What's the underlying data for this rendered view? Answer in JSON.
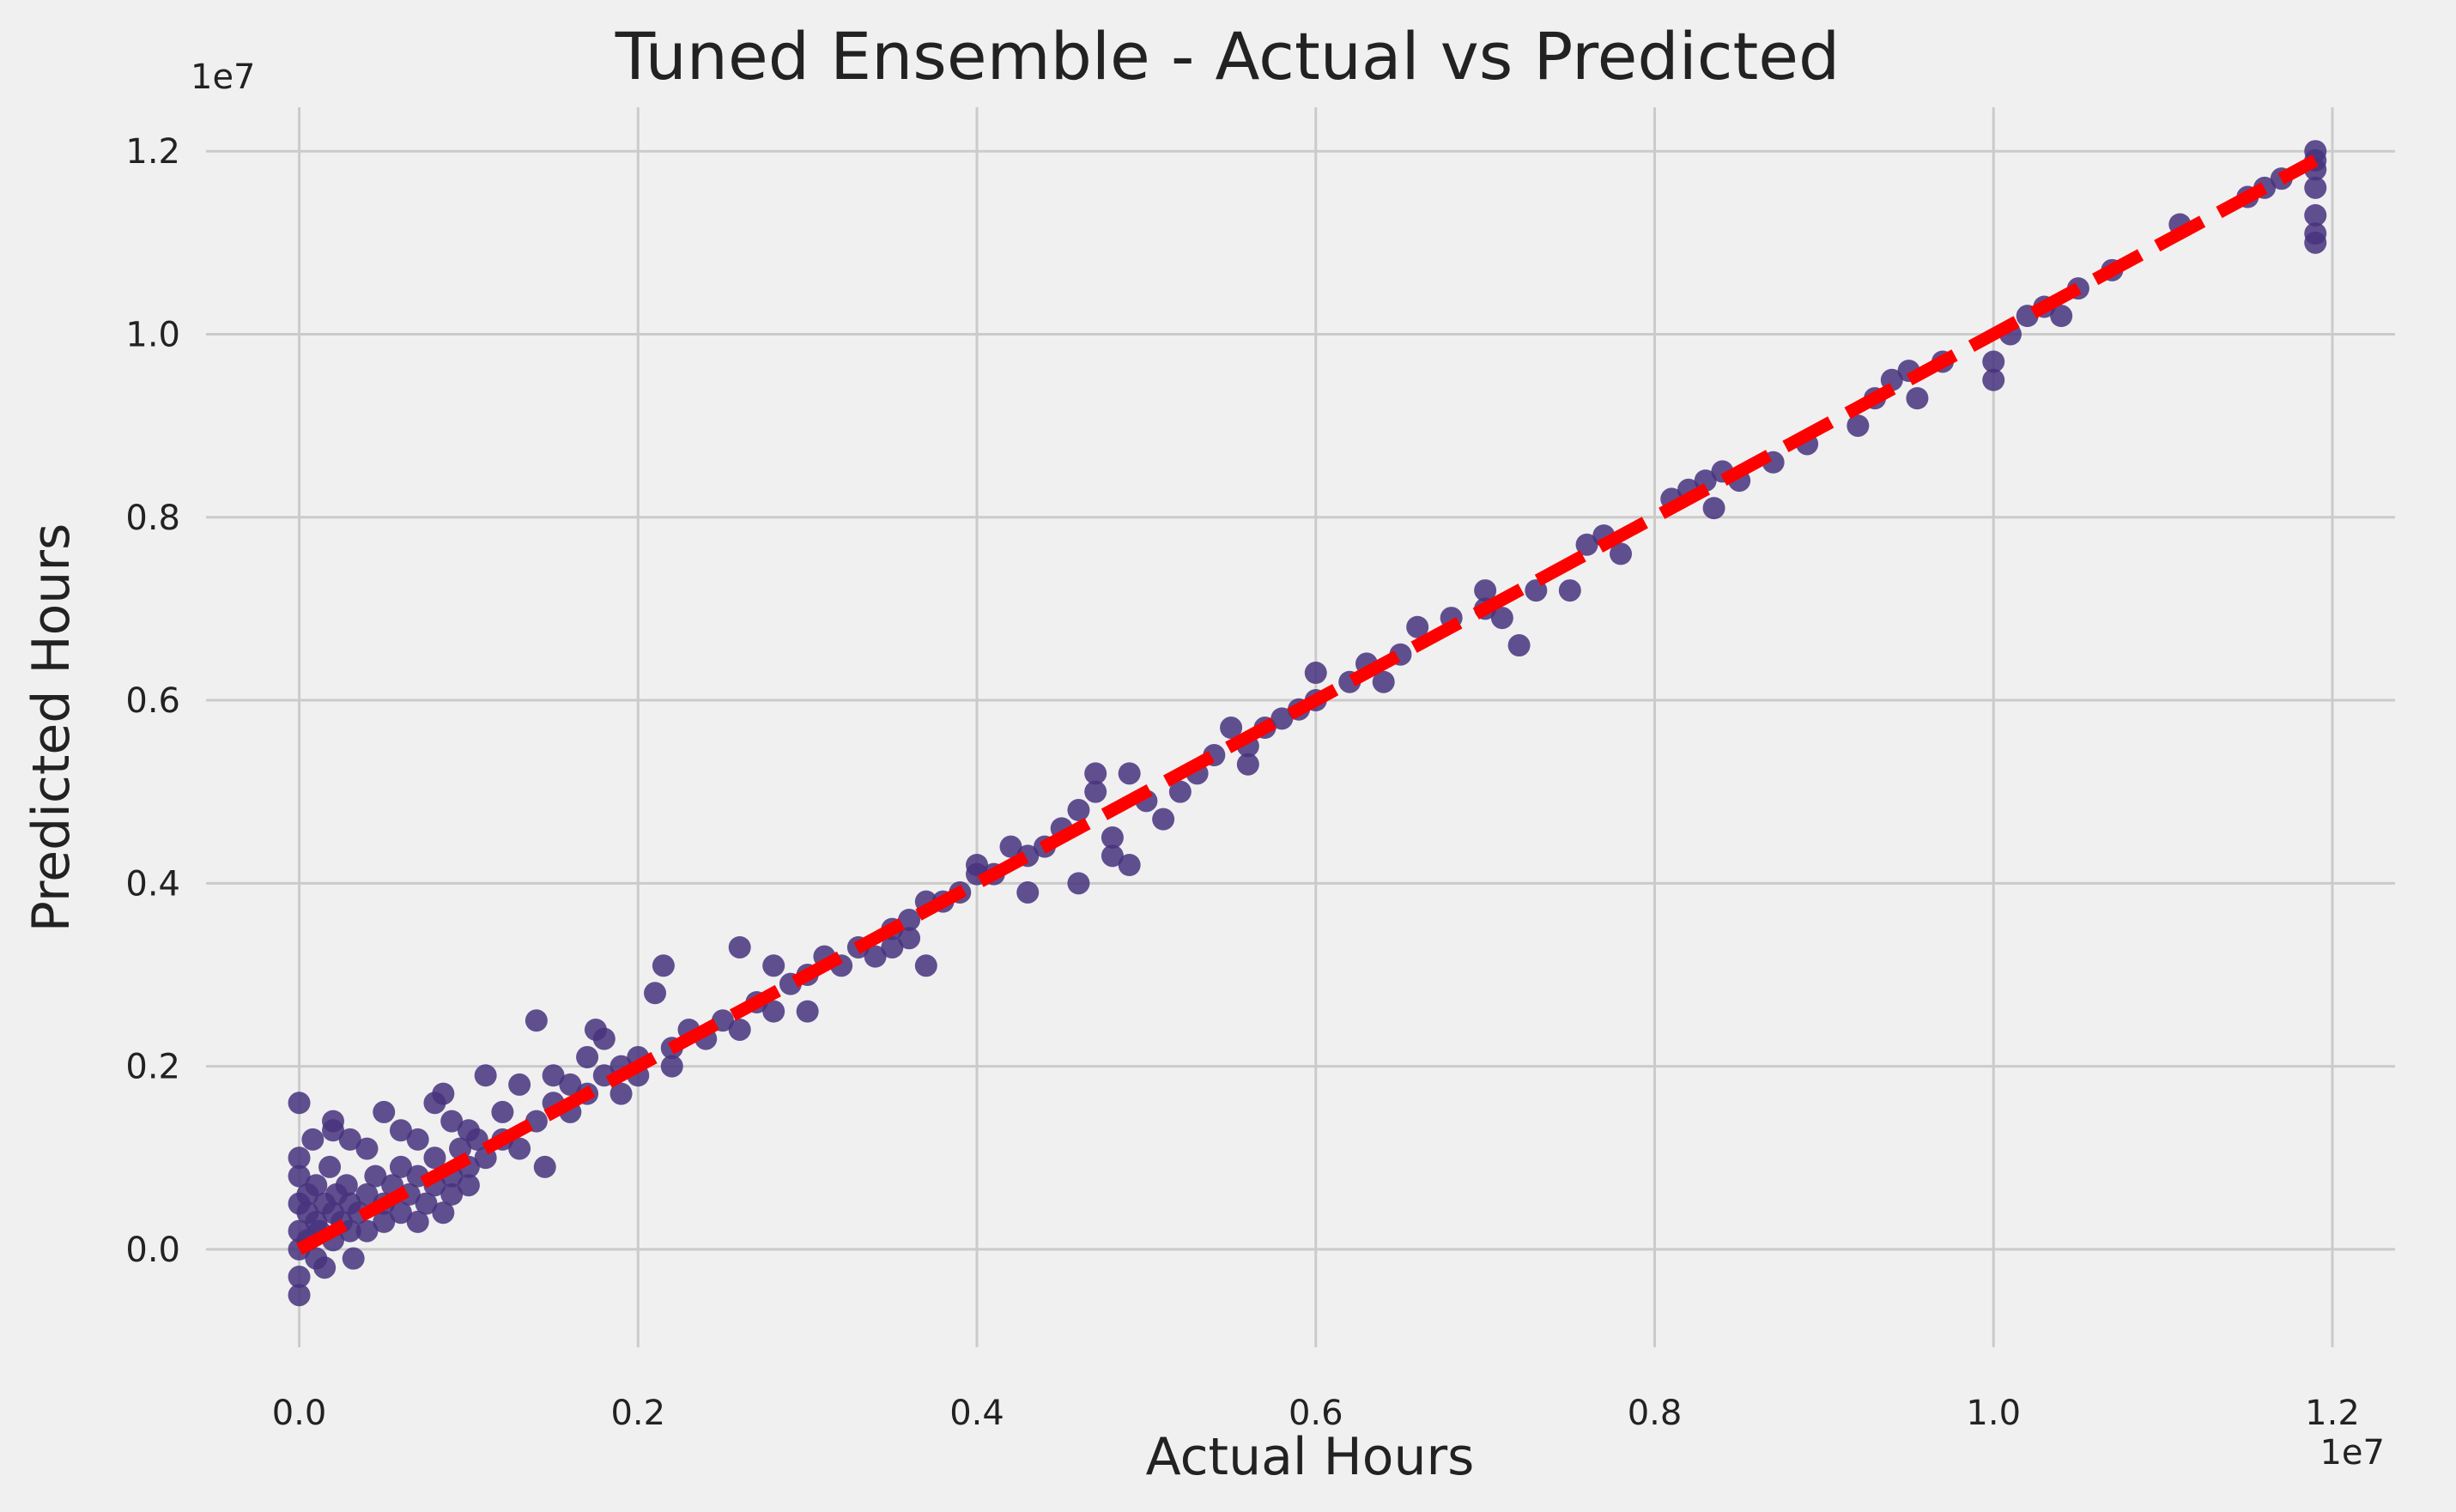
{
  "chart_data": {
    "type": "scatter",
    "title": "Tuned Ensemble - Actual vs Predicted",
    "xlabel": "Actual Hours",
    "ylabel": "Predicted Hours",
    "x_offset_label": "1e7",
    "y_offset_label": "1e7",
    "xlim": [
      -0.055,
      1.237
    ],
    "ylim": [
      -0.107,
      1.248
    ],
    "x_ticks": [
      0.0,
      0.2,
      0.4,
      0.6,
      0.8,
      1.0,
      1.2
    ],
    "x_tick_labels": [
      "0.0",
      "0.2",
      "0.4",
      "0.6",
      "0.8",
      "1.0",
      "1.2"
    ],
    "y_ticks": [
      0.0,
      0.2,
      0.4,
      0.6,
      0.8,
      1.0,
      1.2
    ],
    "y_tick_labels": [
      "0.0",
      "0.2",
      "0.4",
      "0.6",
      "0.8",
      "1.0",
      "1.2"
    ],
    "grid": true,
    "point_color": "#46327e",
    "line_color": "#ff0000",
    "background": "#f0f0f0",
    "reference_line": {
      "x": [
        0.0,
        1.19
      ],
      "y": [
        0.0,
        1.19
      ],
      "style": "dashed"
    },
    "points": [
      [
        0.0,
        -0.05
      ],
      [
        0.0,
        -0.03
      ],
      [
        0.0,
        0.0
      ],
      [
        0.0,
        0.02
      ],
      [
        0.0,
        0.05
      ],
      [
        0.0,
        0.08
      ],
      [
        0.0,
        0.1
      ],
      [
        0.0,
        0.16
      ],
      [
        0.005,
        0.01
      ],
      [
        0.005,
        0.04
      ],
      [
        0.005,
        0.06
      ],
      [
        0.008,
        0.12
      ],
      [
        0.01,
        0.03
      ],
      [
        0.01,
        -0.01
      ],
      [
        0.01,
        0.07
      ],
      [
        0.012,
        0.02
      ],
      [
        0.015,
        0.05
      ],
      [
        0.015,
        -0.02
      ],
      [
        0.018,
        0.09
      ],
      [
        0.02,
        0.04
      ],
      [
        0.02,
        0.01
      ],
      [
        0.022,
        0.06
      ],
      [
        0.025,
        0.03
      ],
      [
        0.028,
        0.07
      ],
      [
        0.03,
        0.02
      ],
      [
        0.03,
        0.05
      ],
      [
        0.032,
        -0.01
      ],
      [
        0.035,
        0.04
      ],
      [
        0.04,
        0.06
      ],
      [
        0.04,
        0.02
      ],
      [
        0.045,
        0.08
      ],
      [
        0.05,
        0.03
      ],
      [
        0.05,
        0.05
      ],
      [
        0.055,
        0.07
      ],
      [
        0.06,
        0.04
      ],
      [
        0.06,
        0.09
      ],
      [
        0.065,
        0.06
      ],
      [
        0.07,
        0.03
      ],
      [
        0.07,
        0.08
      ],
      [
        0.075,
        0.05
      ],
      [
        0.08,
        0.07
      ],
      [
        0.08,
        0.1
      ],
      [
        0.085,
        0.04
      ],
      [
        0.09,
        0.08
      ],
      [
        0.09,
        0.06
      ],
      [
        0.095,
        0.11
      ],
      [
        0.1,
        0.09
      ],
      [
        0.1,
        0.07
      ],
      [
        0.105,
        0.12
      ],
      [
        0.11,
        0.1
      ],
      [
        0.02,
        0.14
      ],
      [
        0.03,
        0.12
      ],
      [
        0.02,
        0.13
      ],
      [
        0.04,
        0.11
      ],
      [
        0.05,
        0.15
      ],
      [
        0.06,
        0.13
      ],
      [
        0.07,
        0.12
      ],
      [
        0.08,
        0.16
      ],
      [
        0.085,
        0.17
      ],
      [
        0.09,
        0.14
      ],
      [
        0.1,
        0.13
      ],
      [
        0.11,
        0.19
      ],
      [
        0.12,
        0.12
      ],
      [
        0.12,
        0.15
      ],
      [
        0.13,
        0.11
      ],
      [
        0.13,
        0.18
      ],
      [
        0.14,
        0.14
      ],
      [
        0.14,
        0.25
      ],
      [
        0.145,
        0.09
      ],
      [
        0.15,
        0.16
      ],
      [
        0.15,
        0.19
      ],
      [
        0.16,
        0.15
      ],
      [
        0.16,
        0.18
      ],
      [
        0.17,
        0.17
      ],
      [
        0.17,
        0.21
      ],
      [
        0.175,
        0.24
      ],
      [
        0.18,
        0.19
      ],
      [
        0.18,
        0.23
      ],
      [
        0.19,
        0.2
      ],
      [
        0.19,
        0.17
      ],
      [
        0.2,
        0.21
      ],
      [
        0.2,
        0.19
      ],
      [
        0.21,
        0.28
      ],
      [
        0.215,
        0.31
      ],
      [
        0.22,
        0.22
      ],
      [
        0.22,
        0.2
      ],
      [
        0.23,
        0.24
      ],
      [
        0.24,
        0.23
      ],
      [
        0.25,
        0.25
      ],
      [
        0.26,
        0.24
      ],
      [
        0.26,
        0.33
      ],
      [
        0.27,
        0.27
      ],
      [
        0.28,
        0.26
      ],
      [
        0.28,
        0.31
      ],
      [
        0.29,
        0.29
      ],
      [
        0.3,
        0.26
      ],
      [
        0.3,
        0.3
      ],
      [
        0.31,
        0.32
      ],
      [
        0.32,
        0.31
      ],
      [
        0.33,
        0.33
      ],
      [
        0.34,
        0.32
      ],
      [
        0.35,
        0.35
      ],
      [
        0.35,
        0.33
      ],
      [
        0.36,
        0.36
      ],
      [
        0.36,
        0.34
      ],
      [
        0.37,
        0.31
      ],
      [
        0.37,
        0.38
      ],
      [
        0.38,
        0.38
      ],
      [
        0.39,
        0.39
      ],
      [
        0.4,
        0.41
      ],
      [
        0.4,
        0.42
      ],
      [
        0.41,
        0.41
      ],
      [
        0.42,
        0.44
      ],
      [
        0.43,
        0.39
      ],
      [
        0.43,
        0.43
      ],
      [
        0.44,
        0.44
      ],
      [
        0.45,
        0.46
      ],
      [
        0.46,
        0.48
      ],
      [
        0.46,
        0.4
      ],
      [
        0.47,
        0.52
      ],
      [
        0.47,
        0.5
      ],
      [
        0.48,
        0.45
      ],
      [
        0.48,
        0.43
      ],
      [
        0.49,
        0.42
      ],
      [
        0.49,
        0.52
      ],
      [
        0.5,
        0.49
      ],
      [
        0.51,
        0.47
      ],
      [
        0.52,
        0.5
      ],
      [
        0.53,
        0.52
      ],
      [
        0.54,
        0.54
      ],
      [
        0.55,
        0.57
      ],
      [
        0.56,
        0.55
      ],
      [
        0.56,
        0.53
      ],
      [
        0.57,
        0.57
      ],
      [
        0.58,
        0.58
      ],
      [
        0.59,
        0.59
      ],
      [
        0.6,
        0.6
      ],
      [
        0.6,
        0.63
      ],
      [
        0.62,
        0.62
      ],
      [
        0.63,
        0.64
      ],
      [
        0.64,
        0.62
      ],
      [
        0.65,
        0.65
      ],
      [
        0.66,
        0.68
      ],
      [
        0.68,
        0.69
      ],
      [
        0.7,
        0.7
      ],
      [
        0.7,
        0.72
      ],
      [
        0.71,
        0.69
      ],
      [
        0.72,
        0.66
      ],
      [
        0.73,
        0.72
      ],
      [
        0.75,
        0.72
      ],
      [
        0.76,
        0.77
      ],
      [
        0.77,
        0.78
      ],
      [
        0.78,
        0.76
      ],
      [
        0.81,
        0.82
      ],
      [
        0.82,
        0.83
      ],
      [
        0.83,
        0.84
      ],
      [
        0.835,
        0.81
      ],
      [
        0.84,
        0.85
      ],
      [
        0.85,
        0.84
      ],
      [
        0.87,
        0.86
      ],
      [
        0.89,
        0.88
      ],
      [
        0.92,
        0.9
      ],
      [
        0.93,
        0.93
      ],
      [
        0.94,
        0.95
      ],
      [
        0.95,
        0.96
      ],
      [
        0.955,
        0.93
      ],
      [
        0.97,
        0.97
      ],
      [
        1.0,
        0.97
      ],
      [
        1.0,
        0.95
      ],
      [
        1.01,
        1.0
      ],
      [
        1.02,
        1.02
      ],
      [
        1.03,
        1.03
      ],
      [
        1.04,
        1.02
      ],
      [
        1.05,
        1.05
      ],
      [
        1.07,
        1.07
      ],
      [
        1.11,
        1.12
      ],
      [
        1.15,
        1.15
      ],
      [
        1.16,
        1.16
      ],
      [
        1.17,
        1.17
      ],
      [
        1.19,
        1.19
      ],
      [
        1.19,
        1.18
      ],
      [
        1.19,
        1.16
      ],
      [
        1.19,
        1.13
      ],
      [
        1.19,
        1.11
      ],
      [
        1.19,
        1.1
      ],
      [
        1.19,
        1.2
      ]
    ]
  }
}
